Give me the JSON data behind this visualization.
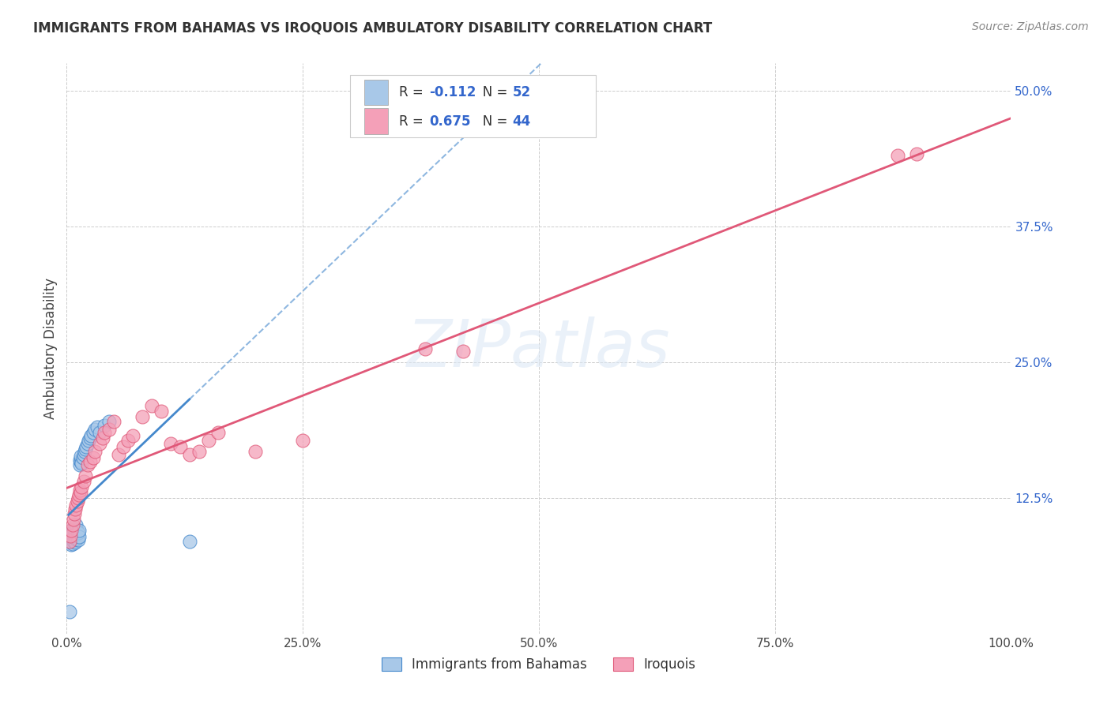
{
  "title": "IMMIGRANTS FROM BAHAMAS VS IROQUOIS AMBULATORY DISABILITY CORRELATION CHART",
  "source": "Source: ZipAtlas.com",
  "ylabel": "Ambulatory Disability",
  "legend_label1": "Immigrants from Bahamas",
  "legend_label2": "Iroquois",
  "r1": -0.112,
  "n1": 52,
  "r2": 0.675,
  "n2": 44,
  "color1": "#a8c8e8",
  "color2": "#f4a0b8",
  "color1_line": "#4488cc",
  "color2_line": "#e05878",
  "xlim": [
    0.0,
    1.0
  ],
  "ylim": [
    0.0,
    0.525
  ],
  "xticks": [
    0.0,
    0.25,
    0.5,
    0.75,
    1.0
  ],
  "yticks": [
    0.125,
    0.25,
    0.375,
    0.5
  ],
  "xtick_labels": [
    "0.0%",
    "25.0%",
    "50.0%",
    "75.0%",
    "100.0%"
  ],
  "ytick_labels": [
    "12.5%",
    "25.0%",
    "37.5%",
    "50.0%"
  ],
  "blue_x": [
    0.002,
    0.003,
    0.003,
    0.004,
    0.004,
    0.005,
    0.005,
    0.005,
    0.006,
    0.006,
    0.006,
    0.007,
    0.007,
    0.007,
    0.007,
    0.008,
    0.008,
    0.008,
    0.009,
    0.009,
    0.01,
    0.01,
    0.01,
    0.01,
    0.011,
    0.011,
    0.012,
    0.012,
    0.013,
    0.013,
    0.014,
    0.014,
    0.015,
    0.015,
    0.016,
    0.017,
    0.018,
    0.019,
    0.02,
    0.021,
    0.022,
    0.023,
    0.025,
    0.026,
    0.028,
    0.03,
    0.032,
    0.035,
    0.04,
    0.045,
    0.13,
    0.003
  ],
  "blue_y": [
    0.09,
    0.085,
    0.092,
    0.088,
    0.095,
    0.082,
    0.088,
    0.094,
    0.083,
    0.089,
    0.095,
    0.085,
    0.09,
    0.093,
    0.097,
    0.086,
    0.091,
    0.096,
    0.084,
    0.09,
    0.087,
    0.092,
    0.096,
    0.1,
    0.088,
    0.094,
    0.086,
    0.093,
    0.089,
    0.095,
    0.155,
    0.16,
    0.158,
    0.163,
    0.157,
    0.162,
    0.165,
    0.168,
    0.17,
    0.172,
    0.175,
    0.178,
    0.18,
    0.182,
    0.185,
    0.188,
    0.19,
    0.185,
    0.192,
    0.195,
    0.085,
    0.02
  ],
  "pink_x": [
    0.003,
    0.004,
    0.005,
    0.006,
    0.007,
    0.008,
    0.009,
    0.01,
    0.011,
    0.012,
    0.013,
    0.014,
    0.015,
    0.016,
    0.018,
    0.02,
    0.022,
    0.025,
    0.028,
    0.03,
    0.035,
    0.038,
    0.04,
    0.045,
    0.05,
    0.055,
    0.06,
    0.065,
    0.07,
    0.08,
    0.09,
    0.1,
    0.11,
    0.12,
    0.13,
    0.14,
    0.15,
    0.16,
    0.2,
    0.25,
    0.38,
    0.42,
    0.88,
    0.9
  ],
  "pink_y": [
    0.085,
    0.09,
    0.095,
    0.1,
    0.105,
    0.11,
    0.115,
    0.118,
    0.122,
    0.125,
    0.128,
    0.132,
    0.13,
    0.135,
    0.14,
    0.145,
    0.155,
    0.158,
    0.162,
    0.168,
    0.175,
    0.18,
    0.185,
    0.188,
    0.195,
    0.165,
    0.172,
    0.178,
    0.182,
    0.2,
    0.21,
    0.205,
    0.175,
    0.172,
    0.165,
    0.168,
    0.178,
    0.185,
    0.168,
    0.178,
    0.262,
    0.26,
    0.44,
    0.442
  ]
}
